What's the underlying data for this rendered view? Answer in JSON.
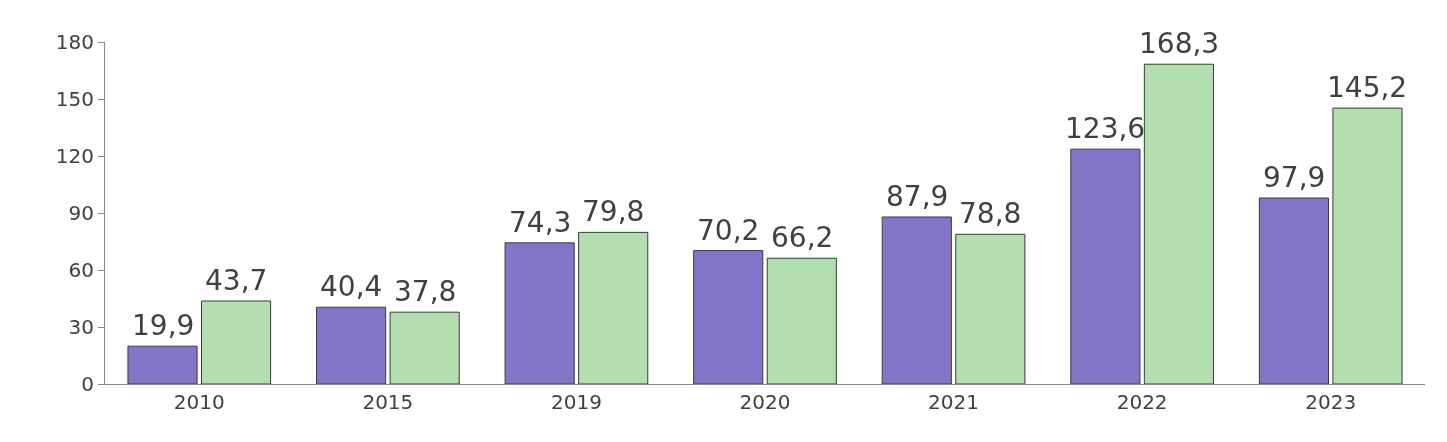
{
  "chart_data": {
    "type": "bar",
    "categories": [
      "2010",
      "2015",
      "2019",
      "2020",
      "2021",
      "2022",
      "2023"
    ],
    "series": [
      {
        "color": "#8575c9",
        "values": [
          19.9,
          40.4,
          74.3,
          70.2,
          87.9,
          123.6,
          97.9
        ],
        "value_labels": [
          "19,9",
          "40,4",
          "74,3",
          "70,2",
          "87,9",
          "123,6",
          "97,9"
        ]
      },
      {
        "color": "#b3dfb0",
        "values": [
          43.7,
          37.8,
          79.8,
          66.2,
          78.8,
          168.3,
          145.2
        ],
        "value_labels": [
          "43,7",
          "37,8",
          "79,8",
          "66,2",
          "78,8",
          "168,3",
          "145,2"
        ]
      }
    ],
    "ylim": [
      0,
      180
    ],
    "yticks": [
      0,
      30,
      60,
      90,
      120,
      150,
      180
    ]
  }
}
